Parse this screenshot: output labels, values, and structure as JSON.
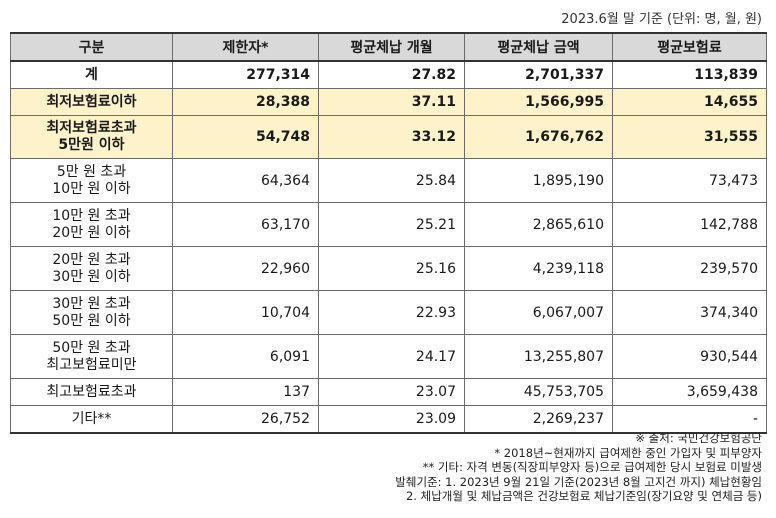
{
  "unit_note": "2023.6월 말 기준 (단위: 명, 월, 원)",
  "headers": [
    "구분",
    "제한자*",
    "평균체납 개월",
    "평균체납 금액",
    "평균보험료"
  ],
  "rows": [
    {
      "label": [
        "계"
      ],
      "values": [
        "277,314",
        "27.82",
        "2,701,337",
        "113,839"
      ]
    },
    {
      "label": [
        "최저보험료이하"
      ],
      "values": [
        "28,388",
        "37.11",
        "1,566,995",
        "14,655"
      ]
    },
    {
      "label": [
        "최저보험료초과",
        "5만원 이하"
      ],
      "values": [
        "54,748",
        "33.12",
        "1,676,762",
        "31,555"
      ]
    },
    {
      "label": [
        "5만 원 초과",
        "10만 원 이하"
      ],
      "values": [
        "64,364",
        "25.84",
        "1,895,190",
        "73,473"
      ]
    },
    {
      "label": [
        "10만 원 초과",
        "20만 원 이하"
      ],
      "values": [
        "63,170",
        "25.21",
        "2,865,610",
        "142,788"
      ]
    },
    {
      "label": [
        "20만 원 초과",
        "30만 원 이하"
      ],
      "values": [
        "22,960",
        "25.16",
        "4,239,118",
        "239,570"
      ]
    },
    {
      "label": [
        "30만 원 초과",
        "50만 원 이하"
      ],
      "values": [
        "10,704",
        "22.93",
        "6,067,007",
        "374,340"
      ]
    },
    {
      "label": [
        "50만 원 초과",
        "최고보험료미만"
      ],
      "values": [
        "6,091",
        "24.17",
        "13,255,807",
        "930,544"
      ]
    },
    {
      "label": [
        "최고보험료초과"
      ],
      "values": [
        "137",
        "23.07",
        "45,753,705",
        "3,659,438"
      ]
    },
    {
      "label": [
        "기타**"
      ],
      "values": [
        "26,752",
        "23.09",
        "2,269,237",
        "-"
      ]
    }
  ],
  "notes": [
    "※ 출처: 국민건강보험공단",
    "* 2018년~현재까지 급여제한 중인 가입자 및 피부양자",
    "** 기타: 자격 변동(직장피부양자 등)으로 급여제한 당시 보험료 미발생",
    "발췌기준: 1. 2023년 9월 21일 기준(2023년 8월 고지건 까지) 체납현황임",
    "2. 체납개월 및 체납금액은 건강보험료 체납기준임(장기요양 및 연체금 등)"
  ]
}
